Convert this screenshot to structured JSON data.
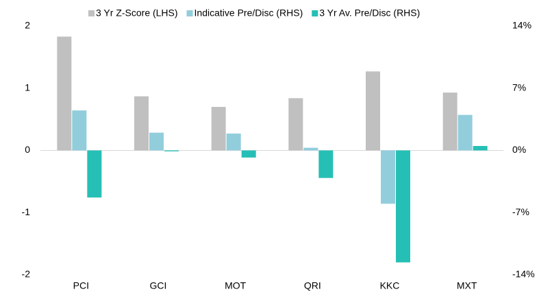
{
  "chart_data": {
    "type": "bar",
    "categories": [
      "PCI",
      "GCI",
      "MOT",
      "QRI",
      "KKC",
      "MXT"
    ],
    "series": [
      {
        "name": "3 Yr Z-Score (LHS)",
        "color": "#c0c0c0",
        "values": [
          1.83,
          0.87,
          0.7,
          0.84,
          1.27,
          0.93
        ]
      },
      {
        "name": "Indicative Pre/Disc (RHS)",
        "color": "#92cddc",
        "axis": "y2",
        "values": [
          4.5,
          2.0,
          1.9,
          0.3,
          -6.0,
          4.0
        ]
      },
      {
        "name": "3 Yr Av. Pre/Disc (RHS)",
        "color": "#26bfb5",
        "axis": "y2",
        "values": [
          -5.3,
          -0.1,
          -0.8,
          -3.1,
          -12.6,
          0.5
        ]
      }
    ],
    "ylim": [
      -2,
      2
    ],
    "yticks": [
      -2,
      -1,
      0,
      1,
      2
    ],
    "y2lim": [
      -14,
      14
    ],
    "y2ticks": [
      {
        "value": -14,
        "label": "-14%"
      },
      {
        "value": -7,
        "label": "-7%"
      },
      {
        "value": 0,
        "label": "0%"
      },
      {
        "value": 7,
        "label": "7%"
      },
      {
        "value": 14,
        "label": "14%"
      }
    ],
    "legend": "top"
  }
}
